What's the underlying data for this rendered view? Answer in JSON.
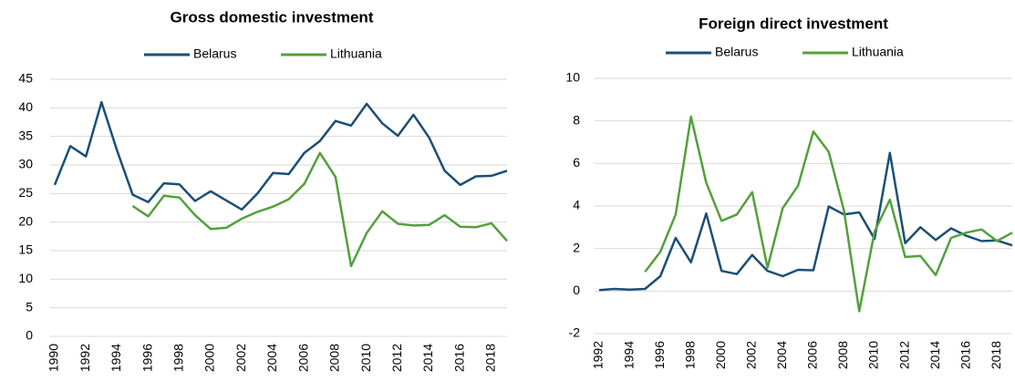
{
  "chart_data": [
    {
      "type": "line",
      "title": "Gross domestic investment",
      "x": [
        1990,
        1991,
        1992,
        1993,
        1994,
        1995,
        1996,
        1997,
        1998,
        1999,
        2000,
        2001,
        2002,
        2003,
        2004,
        2005,
        2006,
        2007,
        2008,
        2009,
        2010,
        2011,
        2012,
        2013,
        2014,
        2015,
        2016,
        2017,
        2018,
        2019
      ],
      "series": [
        {
          "name": "Belarus",
          "color": "#1b4f75",
          "values": [
            26.5,
            33.3,
            31.5,
            41,
            32.5,
            24.8,
            23.5,
            26.8,
            26.6,
            23.7,
            25.4,
            23.8,
            22.2,
            25,
            28.6,
            28.4,
            32.1,
            34.2,
            37.7,
            36.9,
            40.7,
            37.3,
            35.1,
            38.8,
            34.8,
            29,
            26.5,
            28,
            28.1,
            29
          ]
        },
        {
          "name": "Lithuania",
          "color": "#53a03c",
          "values": [
            null,
            null,
            null,
            null,
            null,
            22.8,
            21,
            24.6,
            24.3,
            21.2,
            18.8,
            19,
            20.6,
            21.8,
            22.7,
            24,
            26.7,
            32.1,
            27.9,
            12.3,
            18.1,
            21.9,
            19.7,
            19.4,
            19.5,
            21.2,
            19.2,
            19.1,
            19.8,
            16.7
          ]
        }
      ],
      "xlim": [
        1990,
        2019
      ],
      "xticks": [
        1990,
        1992,
        1994,
        1996,
        1998,
        2000,
        2002,
        2004,
        2006,
        2008,
        2010,
        2012,
        2014,
        2016,
        2018
      ],
      "ylim": [
        0,
        45
      ],
      "yticks": [
        0,
        5,
        10,
        15,
        20,
        25,
        30,
        35,
        40,
        45
      ],
      "grid": true
    },
    {
      "type": "line",
      "title": "Foreign direct investment",
      "x": [
        1992,
        1993,
        1994,
        1995,
        1996,
        1997,
        1998,
        1999,
        2000,
        2001,
        2002,
        2003,
        2004,
        2005,
        2006,
        2007,
        2008,
        2009,
        2010,
        2011,
        2012,
        2013,
        2014,
        2015,
        2016,
        2017,
        2018,
        2019
      ],
      "series": [
        {
          "name": "Belarus",
          "color": "#1b4f75",
          "values": [
            0.05,
            0.1,
            0.07,
            0.1,
            0.7,
            2.5,
            1.35,
            3.65,
            0.95,
            0.8,
            1.7,
            0.95,
            0.7,
            1.0,
            0.98,
            3.98,
            3.6,
            3.7,
            2.45,
            6.5,
            2.25,
            3.0,
            2.4,
            2.95,
            2.6,
            2.35,
            2.38,
            2.15
          ]
        },
        {
          "name": "Lithuania",
          "color": "#53a03c",
          "values": [
            null,
            null,
            null,
            0.9,
            1.85,
            3.6,
            8.2,
            5.1,
            3.3,
            3.6,
            4.65,
            1.1,
            3.9,
            4.95,
            7.5,
            6.55,
            3.8,
            -0.95,
            2.8,
            4.3,
            1.6,
            1.65,
            0.75,
            2.5,
            2.75,
            2.9,
            2.35,
            2.75
          ]
        }
      ],
      "xlim": [
        1992,
        2019
      ],
      "xticks": [
        1992,
        1994,
        1996,
        1998,
        2000,
        2002,
        2004,
        2006,
        2008,
        2010,
        2012,
        2014,
        2016,
        2018
      ],
      "ylim": [
        -2,
        10
      ],
      "yticks": [
        -2,
        0,
        2,
        4,
        6,
        8,
        10
      ],
      "grid": true
    }
  ]
}
